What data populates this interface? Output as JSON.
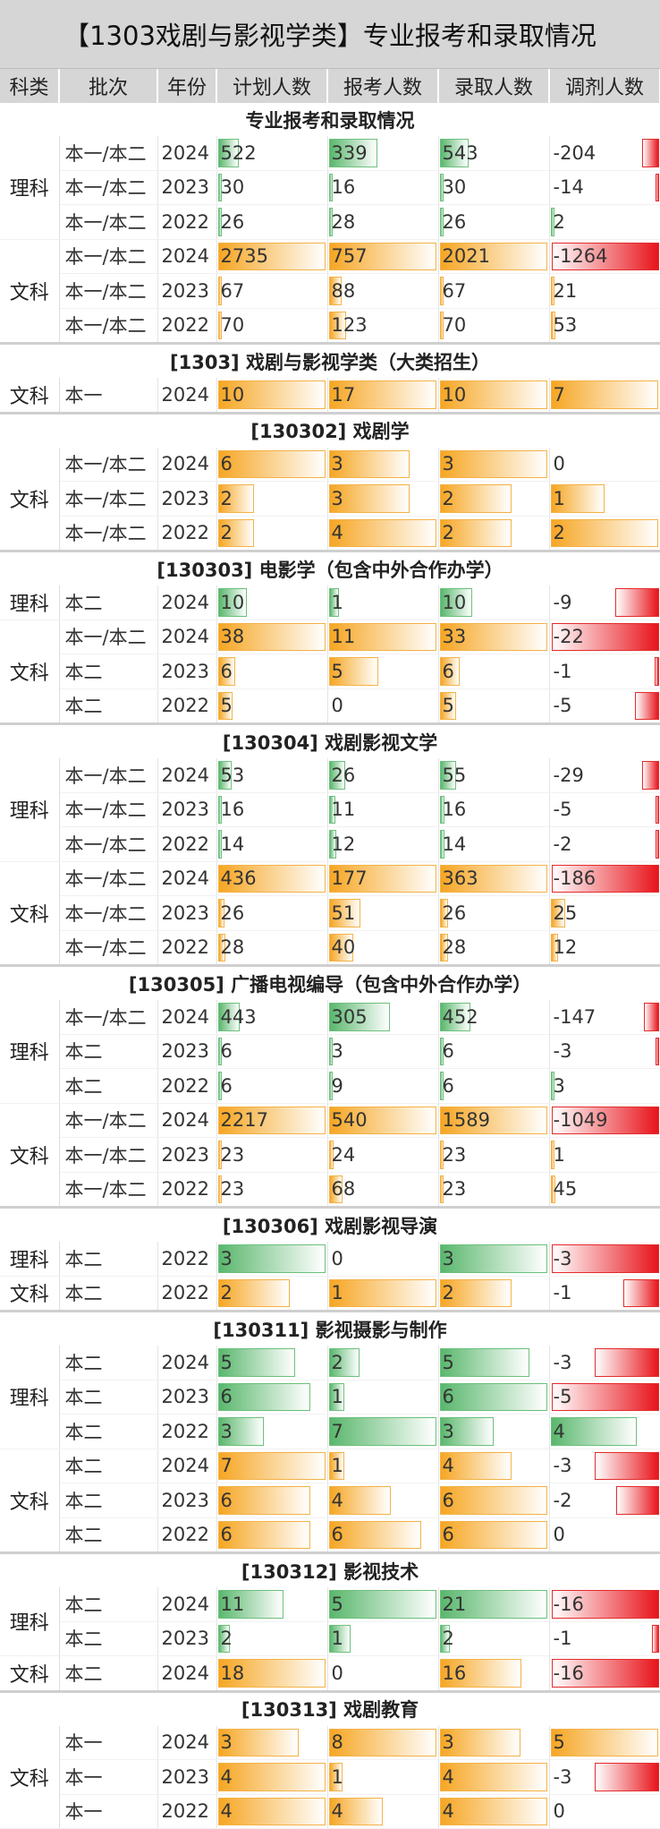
{
  "title": "【1303戏剧与影视学类】专业报考和录取情况",
  "headers": [
    "科类",
    "批次",
    "年份",
    "计划人数",
    "报考人数",
    "录取人数",
    "调剂人数"
  ],
  "sections": [
    {
      "title": "专业报考和录取情况",
      "groups": [
        {
          "kelei": "理科",
          "color": "g",
          "rows": [
            {
              "pici": "本一/本二",
              "year": "2024",
              "v": [
                522,
                339,
                543,
                -204
              ]
            },
            {
              "pici": "本一/本二",
              "year": "2023",
              "v": [
                30,
                16,
                30,
                -14
              ]
            },
            {
              "pici": "本一/本二",
              "year": "2022",
              "v": [
                26,
                28,
                26,
                2
              ]
            }
          ]
        },
        {
          "kelei": "文科",
          "color": "o",
          "rows": [
            {
              "pici": "本一/本二",
              "year": "2024",
              "v": [
                2735,
                757,
                2021,
                -1264
              ]
            },
            {
              "pici": "本一/本二",
              "year": "2023",
              "v": [
                67,
                88,
                67,
                21
              ]
            },
            {
              "pici": "本一/本二",
              "year": "2022",
              "v": [
                70,
                123,
                70,
                53
              ]
            }
          ]
        }
      ]
    },
    {
      "title": "[1303] 戏剧与影视学类（大类招生）",
      "groups": [
        {
          "kelei": "文科",
          "color": "o",
          "rows": [
            {
              "pici": "本一",
              "year": "2024",
              "v": [
                10,
                17,
                10,
                7
              ]
            }
          ]
        }
      ]
    },
    {
      "title": "[130302] 戏剧学",
      "groups": [
        {
          "kelei": "文科",
          "color": "o",
          "rows": [
            {
              "pici": "本一/本二",
              "year": "2024",
              "v": [
                6,
                3,
                3,
                0
              ]
            },
            {
              "pici": "本一/本二",
              "year": "2023",
              "v": [
                2,
                3,
                2,
                1
              ]
            },
            {
              "pici": "本一/本二",
              "year": "2022",
              "v": [
                2,
                4,
                2,
                2
              ]
            }
          ]
        }
      ]
    },
    {
      "title": "[130303] 电影学（包含中外合作办学）",
      "groups": [
        {
          "kelei": "理科",
          "color": "g",
          "rows": [
            {
              "pici": "本二",
              "year": "2024",
              "v": [
                10,
                1,
                10,
                -9
              ]
            }
          ]
        },
        {
          "kelei": "文科",
          "color": "o",
          "rows": [
            {
              "pici": "本一/本二",
              "year": "2024",
              "v": [
                38,
                11,
                33,
                -22
              ]
            },
            {
              "pici": "本二",
              "year": "2023",
              "v": [
                6,
                5,
                6,
                -1
              ]
            },
            {
              "pici": "本二",
              "year": "2022",
              "v": [
                5,
                0,
                5,
                -5
              ]
            }
          ]
        }
      ]
    },
    {
      "title": "[130304] 戏剧影视文学",
      "groups": [
        {
          "kelei": "理科",
          "color": "g",
          "rows": [
            {
              "pici": "本一/本二",
              "year": "2024",
              "v": [
                53,
                26,
                55,
                -29
              ]
            },
            {
              "pici": "本一/本二",
              "year": "2023",
              "v": [
                16,
                11,
                16,
                -5
              ]
            },
            {
              "pici": "本一/本二",
              "year": "2022",
              "v": [
                14,
                12,
                14,
                -2
              ]
            }
          ]
        },
        {
          "kelei": "文科",
          "color": "o",
          "rows": [
            {
              "pici": "本一/本二",
              "year": "2024",
              "v": [
                436,
                177,
                363,
                -186
              ]
            },
            {
              "pici": "本一/本二",
              "year": "2023",
              "v": [
                26,
                51,
                26,
                25
              ]
            },
            {
              "pici": "本一/本二",
              "year": "2022",
              "v": [
                28,
                40,
                28,
                12
              ]
            }
          ]
        }
      ]
    },
    {
      "title": "[130305] 广播电视编导（包含中外合作办学）",
      "groups": [
        {
          "kelei": "理科",
          "color": "g",
          "rows": [
            {
              "pici": "本一/本二",
              "year": "2024",
              "v": [
                443,
                305,
                452,
                -147
              ]
            },
            {
              "pici": "本二",
              "year": "2023",
              "v": [
                6,
                3,
                6,
                -3
              ]
            },
            {
              "pici": "本二",
              "year": "2022",
              "v": [
                6,
                9,
                6,
                3
              ]
            }
          ]
        },
        {
          "kelei": "文科",
          "color": "o",
          "rows": [
            {
              "pici": "本一/本二",
              "year": "2024",
              "v": [
                2217,
                540,
                1589,
                -1049
              ]
            },
            {
              "pici": "本一/本二",
              "year": "2023",
              "v": [
                23,
                24,
                23,
                1
              ]
            },
            {
              "pici": "本一/本二",
              "year": "2022",
              "v": [
                23,
                68,
                23,
                45
              ]
            }
          ]
        }
      ]
    },
    {
      "title": "[130306] 戏剧影视导演",
      "groups": [
        {
          "kelei": "理科",
          "color": "g",
          "rows": [
            {
              "pici": "本二",
              "year": "2022",
              "v": [
                3,
                0,
                3,
                -3
              ]
            }
          ]
        },
        {
          "kelei": "文科",
          "color": "o",
          "rows": [
            {
              "pici": "本二",
              "year": "2022",
              "v": [
                2,
                1,
                2,
                -1
              ]
            }
          ]
        }
      ]
    },
    {
      "title": "[130311] 影视摄影与制作",
      "groups": [
        {
          "kelei": "理科",
          "color": "g",
          "rows": [
            {
              "pici": "本二",
              "year": "2024",
              "v": [
                5,
                2,
                5,
                -3
              ]
            },
            {
              "pici": "本二",
              "year": "2023",
              "v": [
                6,
                1,
                6,
                -5
              ]
            },
            {
              "pici": "本二",
              "year": "2022",
              "v": [
                3,
                7,
                3,
                4
              ]
            }
          ]
        },
        {
          "kelei": "文科",
          "color": "o",
          "rows": [
            {
              "pici": "本二",
              "year": "2024",
              "v": [
                7,
                1,
                4,
                -3
              ]
            },
            {
              "pici": "本二",
              "year": "2023",
              "v": [
                6,
                4,
                6,
                -2
              ]
            },
            {
              "pici": "本二",
              "year": "2022",
              "v": [
                6,
                6,
                6,
                0
              ]
            }
          ]
        }
      ]
    },
    {
      "title": "[130312] 影视技术",
      "groups": [
        {
          "kelei": "理科",
          "color": "g",
          "rows": [
            {
              "pici": "本二",
              "year": "2024",
              "v": [
                11,
                5,
                21,
                -16
              ]
            },
            {
              "pici": "本二",
              "year": "2023",
              "v": [
                2,
                1,
                2,
                -1
              ]
            }
          ]
        },
        {
          "kelei": "文科",
          "color": "o",
          "rows": [
            {
              "pici": "本二",
              "year": "2024",
              "v": [
                18,
                0,
                16,
                -16
              ]
            }
          ]
        }
      ]
    },
    {
      "title": "[130313] 戏剧教育",
      "groups": [
        {
          "kelei": "文科",
          "color": "o",
          "rows": [
            {
              "pici": "本一",
              "year": "2024",
              "v": [
                3,
                8,
                3,
                5
              ]
            },
            {
              "pici": "本一",
              "year": "2023",
              "v": [
                4,
                1,
                4,
                -3
              ]
            },
            {
              "pici": "本一",
              "year": "2022",
              "v": [
                4,
                4,
                4,
                0
              ]
            }
          ]
        }
      ]
    }
  ],
  "colors": {
    "positive_green": "#5ab76d",
    "positive_orange": "#f6a623",
    "negative_red": "#e8141b",
    "header_bg": "#d6d6d6"
  }
}
